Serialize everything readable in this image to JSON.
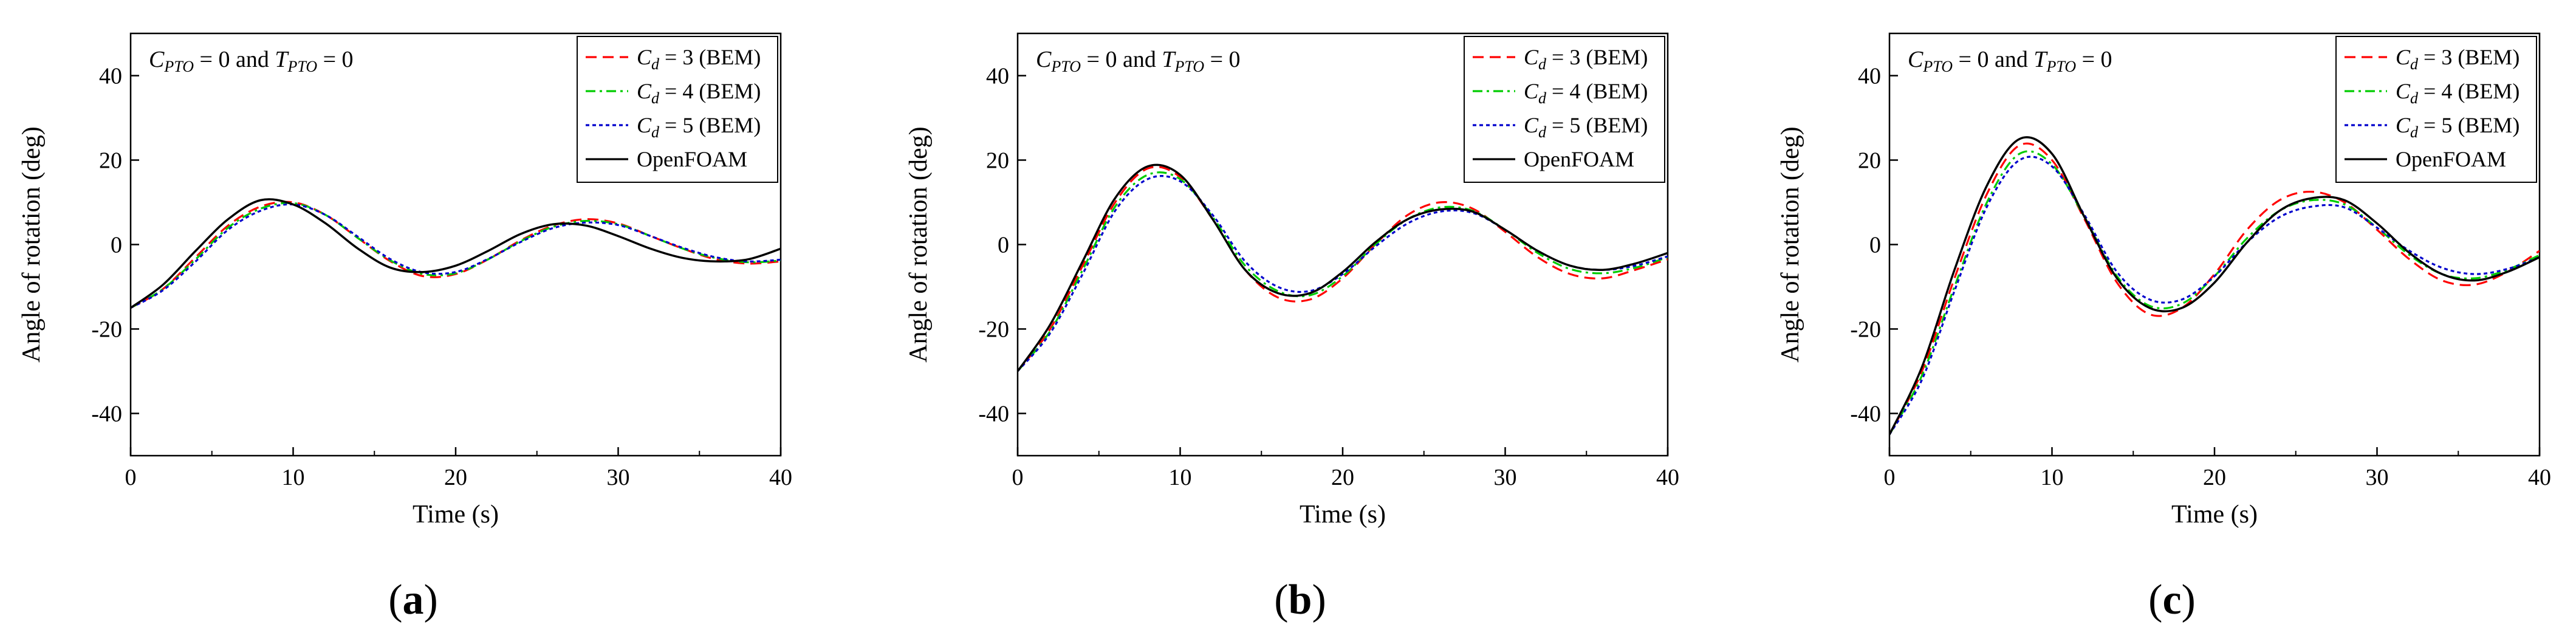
{
  "figure": {
    "legend_labels": {
      "cd3_sub": "d",
      "cd3_suffix": " = 3 (BEM)",
      "cd4_sub": "d",
      "cd4_suffix": " = 4 (BEM)",
      "cd5_sub": "d",
      "cd5_suffix": " = 5 (BEM)",
      "cfd": "OpenFOAM"
    },
    "panel_letters": [
      "a",
      "b",
      "c"
    ]
  },
  "chart_data": [
    {
      "type": "line",
      "panel": "a",
      "title": "",
      "annotation": "C_PTO = 0 and T_PTO = 0",
      "annotation_parts": {
        "C": "C",
        "C_sub": "PTO",
        "mid": " = 0 and ",
        "T": "T",
        "T_sub": "PTO",
        "end": " = 0"
      },
      "xlabel": "Time (s)",
      "ylabel": "Angle of rotation (deg)",
      "xlim": [
        0,
        40
      ],
      "ylim": [
        -50,
        50
      ],
      "xticks": [
        0,
        10,
        20,
        30,
        40
      ],
      "yticks": [
        -40,
        -20,
        0,
        20,
        40
      ],
      "legend_position": "top-right",
      "series": [
        {
          "name": "Cd = 3 (BEM)",
          "color": "#ff0000",
          "dash": "dashed",
          "x": [
            0,
            2,
            4,
            6,
            8,
            10,
            12,
            14,
            16,
            18,
            20,
            22,
            24,
            26,
            28,
            30,
            32,
            34,
            36,
            38,
            40
          ],
          "values": [
            -15,
            -10.5,
            -3,
            4.5,
            9,
            10,
            7,
            1.5,
            -4,
            -7.5,
            -7,
            -3.5,
            1,
            4.5,
            6,
            5,
            2,
            -1,
            -3.5,
            -4.5,
            -4
          ]
        },
        {
          "name": "Cd = 4 (BEM)",
          "color": "#00cc00",
          "dash": "dashdot",
          "x": [
            0,
            2,
            4,
            6,
            8,
            10,
            12,
            14,
            16,
            18,
            20,
            22,
            24,
            26,
            28,
            30,
            32,
            34,
            36,
            38,
            40
          ],
          "values": [
            -15,
            -10.5,
            -3.5,
            4,
            8.5,
            9.8,
            7,
            1.5,
            -3.8,
            -7,
            -6.8,
            -3.5,
            0.8,
            4.2,
            5.6,
            4.8,
            2,
            -1,
            -3.2,
            -4.2,
            -3.8
          ]
        },
        {
          "name": "Cd = 5 (BEM)",
          "color": "#0000cc",
          "dash": "dotted",
          "x": [
            0,
            2,
            4,
            6,
            8,
            10,
            12,
            14,
            16,
            18,
            20,
            22,
            24,
            26,
            28,
            30,
            32,
            34,
            36,
            38,
            40
          ],
          "values": [
            -15,
            -10.8,
            -4,
            3.5,
            8,
            9.5,
            7,
            1.8,
            -3.5,
            -6.6,
            -6.5,
            -3.4,
            0.6,
            3.9,
            5.2,
            4.6,
            2,
            -0.8,
            -3,
            -4,
            -3.6
          ]
        },
        {
          "name": "OpenFOAM",
          "color": "#000000",
          "dash": "solid",
          "x": [
            0,
            2,
            4,
            6,
            8,
            10,
            12,
            14,
            16,
            18,
            20,
            22,
            24,
            26,
            28,
            30,
            32,
            34,
            36,
            38,
            40
          ],
          "values": [
            -15,
            -9.5,
            -1.5,
            6,
            10.5,
            9.5,
            5,
            -1,
            -5.5,
            -6.5,
            -5,
            -1.5,
            2.5,
            4.8,
            4.5,
            2,
            -1,
            -3.2,
            -4,
            -3.5,
            -1
          ]
        }
      ]
    },
    {
      "type": "line",
      "panel": "b",
      "title": "",
      "annotation": "C_PTO = 0 and T_PTO = 0",
      "annotation_parts": {
        "C": "C",
        "C_sub": "PTO",
        "mid": " = 0 and ",
        "T": "T",
        "T_sub": "PTO",
        "end": " = 0"
      },
      "xlabel": "Time (s)",
      "ylabel": "Angle of rotation (deg)",
      "xlim": [
        0,
        40
      ],
      "ylim": [
        -50,
        50
      ],
      "xticks": [
        0,
        10,
        20,
        30,
        40
      ],
      "yticks": [
        -40,
        -20,
        0,
        20,
        40
      ],
      "legend_position": "top-right",
      "series": [
        {
          "name": "Cd = 3 (BEM)",
          "color": "#ff0000",
          "dash": "dashed",
          "x": [
            0,
            2,
            4,
            6,
            8,
            10,
            12,
            14,
            16,
            18,
            20,
            22,
            24,
            26,
            28,
            30,
            32,
            34,
            36,
            38,
            40
          ],
          "values": [
            -30,
            -20,
            -5,
            10,
            18,
            16,
            6,
            -6,
            -12.5,
            -13,
            -8,
            0,
            7,
            10,
            8.5,
            3,
            -3,
            -7,
            -8,
            -6,
            -3.5
          ]
        },
        {
          "name": "Cd = 4 (BEM)",
          "color": "#00cc00",
          "dash": "dashdot",
          "x": [
            0,
            2,
            4,
            6,
            8,
            10,
            12,
            14,
            16,
            18,
            20,
            22,
            24,
            26,
            28,
            30,
            32,
            34,
            36,
            38,
            40
          ],
          "values": [
            -30,
            -20.5,
            -6,
            9,
            16.5,
            15.5,
            6.5,
            -5,
            -11,
            -12,
            -7.5,
            0,
            6,
            8.8,
            8,
            3.5,
            -2,
            -5.8,
            -6.8,
            -5.5,
            -3
          ]
        },
        {
          "name": "Cd = 5 (BEM)",
          "color": "#0000cc",
          "dash": "dotted",
          "x": [
            0,
            2,
            4,
            6,
            8,
            10,
            12,
            14,
            16,
            18,
            20,
            22,
            24,
            26,
            28,
            30,
            32,
            34,
            36,
            38,
            40
          ],
          "values": [
            -30,
            -21,
            -7,
            8,
            15.5,
            15,
            7,
            -4,
            -10,
            -11,
            -7,
            -0.5,
            5,
            7.8,
            7.5,
            3.5,
            -1.5,
            -5,
            -6,
            -5,
            -2.8
          ]
        },
        {
          "name": "OpenFOAM",
          "color": "#000000",
          "dash": "solid",
          "x": [
            0,
            2,
            4,
            6,
            8,
            10,
            12,
            14,
            16,
            18,
            20,
            22,
            24,
            26,
            28,
            30,
            32,
            34,
            36,
            38,
            40
          ],
          "values": [
            -30,
            -19,
            -4,
            11,
            18.5,
            16.5,
            6,
            -6,
            -11.5,
            -11.5,
            -6.5,
            0.5,
            6,
            8.3,
            7.8,
            3.5,
            -1.5,
            -5,
            -6,
            -4.5,
            -2
          ]
        }
      ]
    },
    {
      "type": "line",
      "panel": "c",
      "title": "",
      "annotation": "C_PTO = 0 and T_PTO = 0",
      "annotation_parts": {
        "C": "C",
        "C_sub": "PTO",
        "mid": " = 0 and ",
        "T": "T",
        "T_sub": "PTO",
        "end": " = 0"
      },
      "xlabel": "Time (s)",
      "ylabel": "Angle of rotation (deg)",
      "xlim": [
        0,
        40
      ],
      "ylim": [
        -50,
        50
      ],
      "xticks": [
        0,
        10,
        20,
        30,
        40
      ],
      "yticks": [
        -40,
        -20,
        0,
        20,
        40
      ],
      "legend_position": "top-right",
      "series": [
        {
          "name": "Cd = 3 (BEM)",
          "color": "#ff0000",
          "dash": "dashed",
          "x": [
            0,
            2,
            4,
            6,
            8,
            10,
            12,
            14,
            16,
            18,
            20,
            22,
            24,
            26,
            28,
            30,
            32,
            34,
            36,
            38,
            40
          ],
          "values": [
            -45,
            -30,
            -8,
            12,
            23.5,
            20,
            6,
            -9,
            -16.5,
            -15,
            -7,
            3.5,
            10.5,
            12.5,
            10,
            3.5,
            -3.5,
            -8.5,
            -9.5,
            -6.5,
            -1.5
          ]
        },
        {
          "name": "Cd = 4 (BEM)",
          "color": "#00cc00",
          "dash": "dashdot",
          "x": [
            0,
            2,
            4,
            6,
            8,
            10,
            12,
            14,
            16,
            18,
            20,
            22,
            24,
            26,
            28,
            30,
            32,
            34,
            36,
            38,
            40
          ],
          "values": [
            -45,
            -31,
            -10,
            10,
            21.5,
            19,
            6.5,
            -7.5,
            -14.5,
            -14,
            -7.5,
            1.5,
            8,
            10.5,
            9.5,
            4,
            -2.5,
            -7,
            -8,
            -6,
            -2.5
          ]
        },
        {
          "name": "Cd = 5 (BEM)",
          "color": "#0000cc",
          "dash": "dotted",
          "x": [
            0,
            2,
            4,
            6,
            8,
            10,
            12,
            14,
            16,
            18,
            20,
            22,
            24,
            26,
            28,
            30,
            32,
            34,
            36,
            38,
            40
          ],
          "values": [
            -45,
            -32,
            -11,
            9,
            20,
            18.5,
            7,
            -6.5,
            -13,
            -13,
            -7.5,
            0.5,
            6.5,
            9,
            8.8,
            4,
            -1.5,
            -5.5,
            -7,
            -5.8,
            -3
          ]
        },
        {
          "name": "OpenFOAM",
          "color": "#000000",
          "dash": "solid",
          "x": [
            0,
            2,
            4,
            6,
            8,
            10,
            12,
            14,
            16,
            18,
            20,
            22,
            24,
            26,
            28,
            30,
            32,
            34,
            36,
            38,
            40
          ],
          "values": [
            -45,
            -29,
            -6,
            14,
            25,
            21.5,
            6.5,
            -8,
            -15,
            -15,
            -9,
            0.5,
            8,
            11,
            10.5,
            5,
            -2,
            -7,
            -8.5,
            -6.5,
            -3
          ]
        }
      ]
    }
  ]
}
